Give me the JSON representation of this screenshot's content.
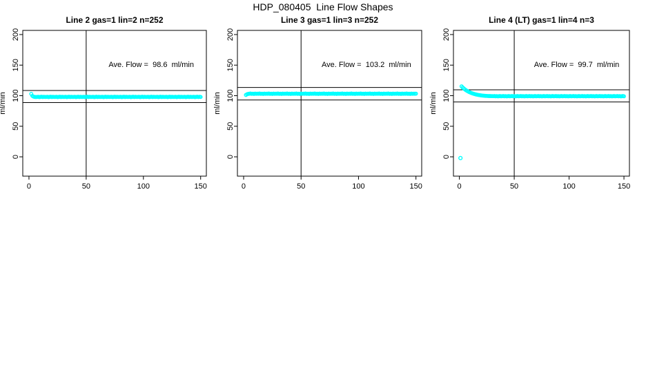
{
  "figure": {
    "title": "HDP_080405  Line Flow Shapes"
  },
  "colors": {
    "points": "#00ffff",
    "axis": "#000000",
    "background": "#ffffff"
  },
  "chart_data": [
    {
      "type": "scatter",
      "title": "Line 2 gas=1 lin=2 n=252",
      "annotation": "Ave. Flow =  98.6  ml/min",
      "ave_flow_ml_min": 98.6,
      "n": 252,
      "xlabel": "",
      "ylabel": "ml/min",
      "xlim": [
        -5.4,
        155
      ],
      "ylim": [
        -31.6,
        206.8
      ],
      "xticks": [
        0,
        50,
        100,
        150
      ],
      "yticks": [
        0,
        50,
        100,
        150,
        200
      ],
      "vline_x": 50,
      "hlines": [
        108.5,
        88.7
      ],
      "grid": false,
      "legend": false,
      "series": {
        "name": "line2-flow",
        "x_start": 2,
        "x_step": 1,
        "y": [
          103,
          99.6,
          98.5,
          98,
          97.8,
          97.9,
          98.2,
          97.7,
          98,
          98.3,
          97.8,
          98.1,
          97.9,
          97.9,
          98.2,
          97.7,
          98,
          98.3,
          97.8,
          98.1,
          97.9,
          97.9,
          98.2,
          97.7,
          98,
          98.3,
          97.8,
          98.1,
          97.9,
          97.9,
          98.2,
          97.7,
          98,
          98.3,
          97.8,
          98.1,
          97.9,
          97.9,
          98.2,
          97.7,
          98,
          98.3,
          97.8,
          98.1,
          97.9,
          97.9,
          98.2,
          97.7,
          98,
          98.3,
          97.8,
          98.1,
          97.9,
          97.9,
          98.2,
          97.7,
          98,
          98.3,
          97.8,
          98.1,
          97.9,
          97.9,
          98.2,
          97.7,
          98,
          98.3,
          97.8,
          98.1,
          97.9,
          97.9,
          98.2,
          97.7,
          98,
          98.3,
          97.8,
          98.1,
          97.9,
          97.9,
          98.2,
          97.7,
          98,
          98.3,
          97.8,
          98.1,
          97.9,
          97.9,
          98.2,
          97.7,
          98,
          98.3,
          97.8,
          98.1,
          97.9,
          97.9,
          98.2,
          97.7,
          98,
          98.3,
          97.8,
          98.1,
          97.9,
          97.9,
          98.2,
          97.7,
          98,
          98.3,
          97.8,
          98.1,
          97.9,
          97.9,
          98.2,
          97.7,
          98,
          98.3,
          97.8,
          98.1,
          97.9,
          97.9,
          98.2,
          97.7,
          98,
          98.3,
          97.8,
          98.1,
          97.9,
          97.9,
          98.2,
          97.7,
          98,
          98.3,
          97.8,
          98.1,
          97.9,
          97.9,
          98.2,
          97.7,
          98,
          98.3,
          97.8,
          98.1,
          97.9,
          97.9,
          98.2,
          97.7,
          98,
          98.3,
          97.8,
          98.1,
          97.9
        ]
      }
    },
    {
      "type": "scatter",
      "title": "Line 3 gas=1 lin=3 n=252",
      "annotation": "Ave. Flow =  103.2  ml/min",
      "ave_flow_ml_min": 103.2,
      "n": 252,
      "xlabel": "",
      "ylabel": "ml/min",
      "xlim": [
        -5.4,
        155
      ],
      "ylim": [
        -31.6,
        206.8
      ],
      "xticks": [
        0,
        50,
        100,
        150
      ],
      "yticks": [
        0,
        50,
        100,
        150,
        200
      ],
      "vline_x": 50,
      "hlines": [
        113.5,
        92.9
      ],
      "grid": false,
      "legend": false,
      "series": {
        "name": "line3-flow",
        "x_start": 2,
        "x_step": 1,
        "y": [
          101.2,
          102.4,
          102.9,
          103.2,
          103.5,
          103,
          103.3,
          102.9,
          103.4,
          103.1,
          103.3,
          103.2,
          103.5,
          103,
          103.3,
          102.9,
          103.4,
          103.1,
          103.3,
          103.2,
          103.5,
          103,
          103.3,
          102.9,
          103.4,
          103.1,
          103.3,
          103.2,
          103.5,
          103,
          103.3,
          102.9,
          103.4,
          103.1,
          103.3,
          103.2,
          103.5,
          103,
          103.3,
          102.9,
          103.4,
          103.1,
          103.3,
          103.2,
          103.5,
          103,
          103.3,
          102.9,
          103.4,
          103.1,
          103.3,
          103.2,
          103.5,
          103,
          103.3,
          102.9,
          103.4,
          103.1,
          103.3,
          103.2,
          103.5,
          103,
          103.3,
          102.9,
          103.4,
          103.1,
          103.3,
          103.2,
          103.5,
          103,
          103.3,
          102.9,
          103.4,
          103.1,
          103.3,
          103.2,
          103.5,
          103,
          103.3,
          102.9,
          103.4,
          103.1,
          103.3,
          103.2,
          103.5,
          103,
          103.3,
          102.9,
          103.4,
          103.1,
          103.3,
          103.2,
          103.5,
          103,
          103.3,
          102.9,
          103.4,
          103.1,
          103.3,
          103.2,
          103.5,
          103,
          103.3,
          102.9,
          103.4,
          103.1,
          103.3,
          103.2,
          103.5,
          103,
          103.3,
          102.9,
          103.4,
          103.1,
          103.3,
          103.2,
          103.5,
          103,
          103.3,
          102.9,
          103.4,
          103.1,
          103.3,
          103.2,
          103.5,
          103,
          103.3,
          102.9,
          103.4,
          103.1,
          103.3,
          103.2,
          103.5,
          103,
          103.3,
          102.9,
          103.4,
          103.1,
          103.3,
          103.2,
          103.5,
          103,
          103.3,
          102.9,
          103.4,
          103.1,
          103.3,
          103.2,
          103.3
        ]
      }
    },
    {
      "type": "scatter",
      "title": "Line 4 (LT) gas=1 lin=4 n=3",
      "annotation": "Ave. Flow =  99.7  ml/min",
      "ave_flow_ml_min": 99.7,
      "n": 3,
      "xlabel": "",
      "ylabel": "ml/min",
      "xlim": [
        -5.4,
        155
      ],
      "ylim": [
        -31.6,
        206.8
      ],
      "xticks": [
        0,
        50,
        100,
        150
      ],
      "yticks": [
        0,
        50,
        100,
        150,
        200
      ],
      "vline_x": 50,
      "hlines": [
        109.7,
        89.7
      ],
      "grid": false,
      "legend": false,
      "extra_points": [
        [
          1,
          -2
        ]
      ],
      "series": {
        "name": "line4-flow",
        "x_start": 2,
        "x_step": 1,
        "y": [
          115.3,
          113.4,
          111.8,
          110.3,
          109,
          107.9,
          106.8,
          105.9,
          105.1,
          104.3,
          103.7,
          103.1,
          102.6,
          102.1,
          101.7,
          101.3,
          101,
          100.7,
          100.4,
          100.2,
          100,
          99.8,
          99.7,
          99.6,
          99.5,
          99.4,
          99.4,
          99.3,
          99.3,
          99.2,
          99.4,
          99,
          99.3,
          98.9,
          99.1,
          99.4,
          99,
          99.2,
          99.4,
          99,
          99.3,
          98.9,
          99.1,
          99.4,
          99,
          99.2,
          99.4,
          99,
          99.3,
          98.9,
          99.1,
          99.4,
          99,
          99.2,
          99.4,
          99,
          99.3,
          98.9,
          99.1,
          99.4,
          99,
          99.2,
          99.4,
          99,
          99.3,
          98.9,
          99.1,
          99.4,
          99,
          99.2,
          99.4,
          99,
          99.3,
          98.9,
          99.1,
          99.4,
          99,
          99.2,
          99.4,
          99,
          99.3,
          98.9,
          99.1,
          99.4,
          99,
          99.2,
          99.4,
          99,
          99.3,
          98.9,
          99.1,
          99.4,
          99,
          99.2,
          99.4,
          99,
          99.3,
          98.9,
          99.1,
          99.4,
          99,
          99.2,
          99.4,
          99,
          99.3,
          98.9,
          99.1,
          99.4,
          99,
          99.2,
          99.4,
          99,
          99.3,
          98.9,
          99.1,
          99.4,
          99,
          99.2,
          99.4,
          99,
          99.3,
          98.9,
          99.1,
          99.4,
          99,
          99.2,
          99.4,
          99,
          99.3,
          98.9,
          99.1,
          99.4,
          99,
          99.2,
          99.4,
          99,
          99.3,
          98.9,
          99.1,
          99.4,
          99,
          99.2,
          99.4,
          99,
          99.3,
          98.9,
          99.1,
          99.4,
          99
        ]
      }
    }
  ]
}
